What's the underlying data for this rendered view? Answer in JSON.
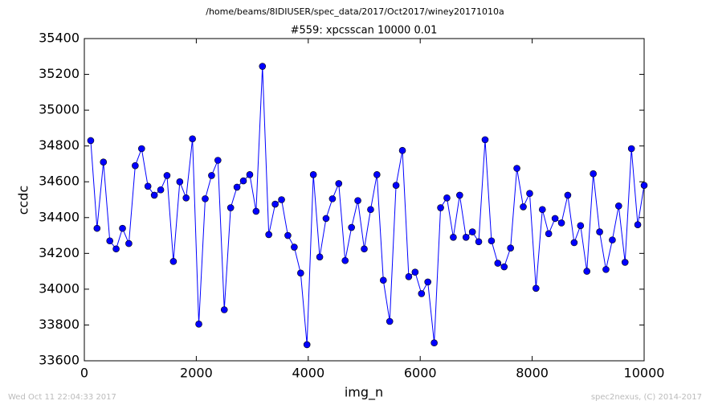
{
  "chart_data": {
    "type": "line",
    "suptitle": "/home/beams/8IDIUSER/spec_data/2017/Oct2017/winey20171010a",
    "title": "#559: xpcsscan 10000 0.01",
    "xlabel": "img_n",
    "ylabel": "ccdc",
    "footer_left": "Wed Oct 11 22:04:33 2017",
    "footer_right": "spec2nexus, (C) 2014-2017",
    "x": [
      114,
      227,
      341,
      455,
      568,
      682,
      795,
      909,
      1023,
      1136,
      1250,
      1364,
      1477,
      1591,
      1705,
      1818,
      1932,
      2045,
      2159,
      2273,
      2386,
      2500,
      2614,
      2727,
      2841,
      2955,
      3068,
      3182,
      3295,
      3409,
      3523,
      3636,
      3750,
      3864,
      3977,
      4091,
      4205,
      4318,
      4432,
      4545,
      4659,
      4773,
      4886,
      5000,
      5114,
      5227,
      5341,
      5455,
      5568,
      5682,
      5795,
      5909,
      6023,
      6136,
      6250,
      6364,
      6477,
      6591,
      6705,
      6818,
      6932,
      7045,
      7159,
      7273,
      7386,
      7500,
      7614,
      7727,
      7841,
      7955,
      8068,
      8182,
      8295,
      8409,
      8523,
      8636,
      8750,
      8864,
      8977,
      9091,
      9205,
      9318,
      9432,
      9545,
      9659,
      9773,
      9886,
      10000
    ],
    "series": [
      {
        "name": "ccdc",
        "color": "#0000ff",
        "values": [
          34830,
          34340,
          34710,
          34270,
          34225,
          34340,
          34255,
          34690,
          34785,
          34575,
          34525,
          34555,
          34635,
          34155,
          34600,
          34510,
          34840,
          33805,
          34505,
          34635,
          34720,
          33885,
          34455,
          34570,
          34605,
          34640,
          34435,
          35245,
          34305,
          34475,
          34500,
          34300,
          34235,
          34090,
          33690,
          34640,
          34180,
          34395,
          34505,
          34590,
          34160,
          34345,
          34495,
          34225,
          34445,
          34640,
          34050,
          33820,
          34580,
          34775,
          34070,
          34095,
          33975,
          34040,
          33700,
          34455,
          34510,
          34290,
          34525,
          34290,
          34320,
          34265,
          34835,
          34270,
          34145,
          34125,
          34230,
          34675,
          34460,
          34535,
          34005,
          34445,
          34310,
          34395,
          34370,
          34525,
          34260,
          34355,
          34100,
          34645,
          34320,
          34110,
          34275,
          34465,
          34150,
          34785,
          34360,
          34580
        ]
      }
    ],
    "xlim": [
      0,
      10000
    ],
    "xticks": [
      0,
      2000,
      4000,
      6000,
      8000,
      10000
    ],
    "ylim": [
      33600,
      35400
    ],
    "yticks": [
      33600,
      33800,
      34000,
      34200,
      34400,
      34600,
      34800,
      35000,
      35200,
      35400
    ],
    "grid": false
  }
}
